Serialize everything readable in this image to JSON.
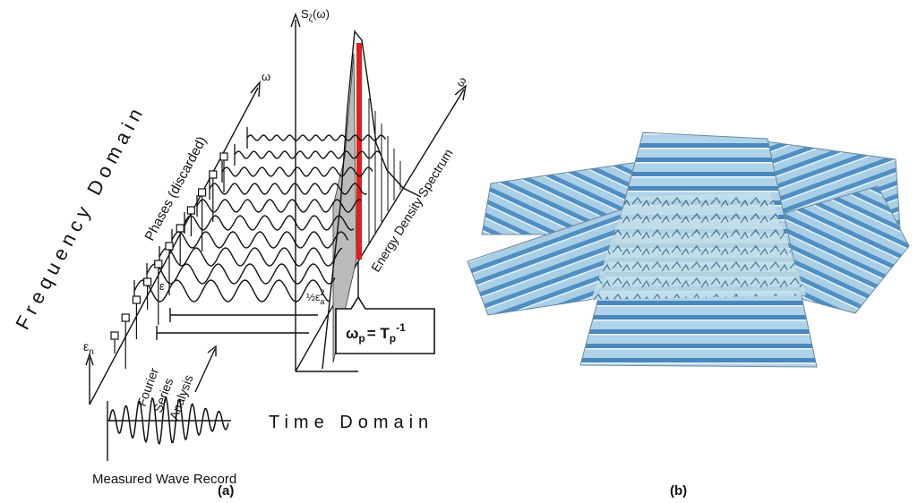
{
  "panel_a": {
    "caption": "(a)",
    "frequency_domain": "Frequency Domain",
    "time_domain": "Time Domain",
    "phases": "Phases (discarded)",
    "omega_axis": "ω",
    "omega_axis_2": "ω",
    "spectrum_axis": {
      "base": "S",
      "sub": "ζ",
      "rest": "(ω)"
    },
    "energy_spectrum": "Energy Density Spectrum",
    "epsilon": "ε",
    "half_amp": {
      "base": "½ε",
      "sub": "a",
      "sup": "2"
    },
    "epsilon_n": {
      "base": "ε",
      "sub": "n"
    },
    "fourier": [
      "Fourier",
      "Series",
      "Analysis"
    ],
    "measured": "Measured Wave Record",
    "peak": {
      "base": "ω",
      "sub": "p",
      "mid": "= T",
      "sub2": "p",
      "sup": "-1"
    }
  },
  "panel_b": {
    "caption": "(b)"
  }
}
